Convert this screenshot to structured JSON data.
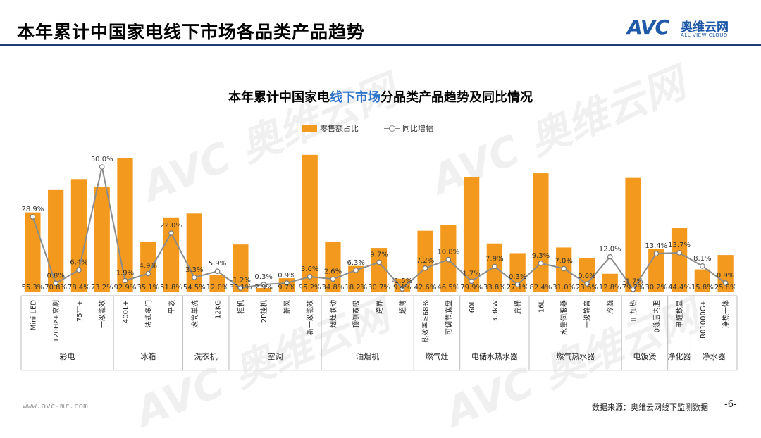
{
  "page": {
    "title": "本年累计中国家电线下市场各品类产品趋势",
    "logo_mark": "AVC",
    "logo_cn": "奥维云网",
    "logo_en": "ALL VIEW CLOUD",
    "watermark": "AVC 奥维云网",
    "watermark_en": "ALL VIEW CLOUD",
    "footer_url": "www.avc-mr.com",
    "footer_source": "数据来源：奥维云网线下监测数据",
    "page_number": "-6-"
  },
  "chart_title": {
    "pre": "本年累计中国家电",
    "highlight": "线下市场",
    "post": "分品类产品趋势及同比情况"
  },
  "legend": {
    "bar": "零售额占比",
    "line": "同比增幅"
  },
  "colors": {
    "bar": "#f39a1e",
    "line": "#8c8c8c",
    "title_rule": "#1e3c78",
    "highlight": "#2e75c9"
  },
  "chart_data": {
    "type": "bar",
    "series": [
      {
        "name": "零售额占比",
        "kind": "bar",
        "labels": [
          "55.3%",
          "70.8%",
          "78.4%",
          "73.2%",
          "92.9%",
          "35.1%",
          "51.8%",
          "54.5%",
          "12.0%",
          "33.1%",
          "2.9%",
          "9.7%",
          "95.2%",
          "34.8%",
          "18.2%",
          "30.7%",
          "9.4%",
          "42.6%",
          "46.5%",
          "79.9%",
          "33.8%",
          "27.1%",
          "82.4%",
          "31.0%",
          "23.6%",
          "12.8%",
          "79.2%",
          "30.2%",
          "44.4%",
          "15.8%",
          "25.8%"
        ],
        "values": [
          55.3,
          70.8,
          78.4,
          73.2,
          92.9,
          35.1,
          51.8,
          54.5,
          12.0,
          33.1,
          2.9,
          9.7,
          95.2,
          34.8,
          18.2,
          30.7,
          9.4,
          42.6,
          46.5,
          79.9,
          33.8,
          27.1,
          82.4,
          31.0,
          23.6,
          12.8,
          79.2,
          30.2,
          44.4,
          15.8,
          25.8
        ]
      },
      {
        "name": "同比增幅",
        "kind": "line",
        "labels": [
          "28.9%",
          "0.8%",
          "6.4%",
          "50.0%",
          "1.9%",
          "4.9%",
          "22.0%",
          "3.3%",
          "5.9%",
          "-1.2%",
          "0.3%",
          "0.9%",
          "3.6%",
          "2.6%",
          "6.3%",
          "9.7%",
          "-1.5%",
          "7.2%",
          "10.8%",
          "1.7%",
          "7.9%",
          "0.3%",
          "9.3%",
          "7.0%",
          "0.6%",
          "12.0%",
          "-1.7%",
          "13.4%",
          "13.7%",
          "8.1%",
          "0.9%"
        ],
        "values": [
          28.9,
          0.8,
          6.4,
          50.0,
          1.9,
          4.9,
          22.0,
          3.3,
          5.9,
          -1.2,
          0.3,
          0.9,
          3.6,
          2.6,
          6.3,
          9.7,
          -1.5,
          7.2,
          10.8,
          1.7,
          7.9,
          0.3,
          9.3,
          7.0,
          0.6,
          12.0,
          -1.7,
          13.4,
          13.7,
          8.1,
          0.9
        ]
      }
    ],
    "categories": [
      "Mini LED",
      "120Hz+高刷",
      "75寸+",
      "一级能效",
      "400L+",
      "法式多门",
      "平嵌",
      "滚筒单洗",
      "12KG",
      "柜机",
      "2P挂机",
      "新风",
      "新一级能效",
      "烟灶联动",
      "顶侧双吸",
      "跨界",
      "超薄",
      "热效率≥68%",
      "可调节底盘",
      "60L",
      "3.3kW",
      "扁桶",
      "16L",
      "水量伺服器",
      "一级静音",
      "冷凝",
      "IH加热",
      "0涂层内胆",
      "甲醛数显",
      "R01000G+",
      "净热一体"
    ],
    "groups": [
      {
        "label": "彩电",
        "count": 4
      },
      {
        "label": "冰箱",
        "count": 3
      },
      {
        "label": "洗衣机",
        "count": 2
      },
      {
        "label": "空调",
        "count": 4
      },
      {
        "label": "油烟机",
        "count": 4
      },
      {
        "label": "燃气灶",
        "count": 2
      },
      {
        "label": "电储水热水器",
        "count": 3
      },
      {
        "label": "燃气热水器",
        "count": 4
      },
      {
        "label": "电饭煲",
        "count": 2
      },
      {
        "label": "净化器",
        "count": 1
      },
      {
        "label": "净水器",
        "count": 2
      }
    ],
    "bar_range": [
      0,
      100
    ],
    "line_range": [
      -20,
      60
    ],
    "legend_position": "top-center"
  }
}
